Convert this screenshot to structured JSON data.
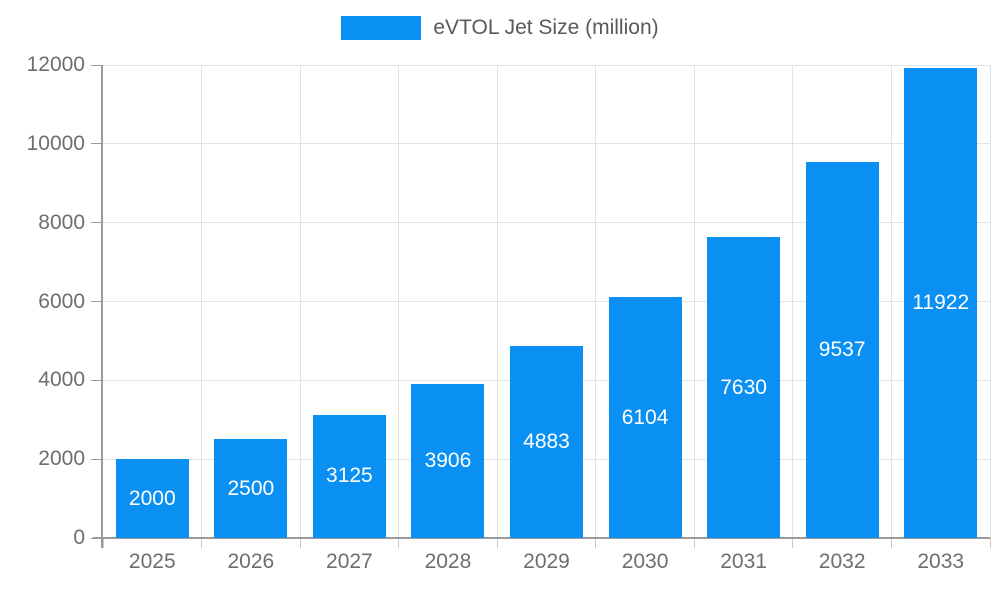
{
  "chart_data": {
    "type": "bar",
    "title": "eVTOL Jet Size (million)",
    "legend": {
      "label": "eVTOL Jet Size (million)",
      "position": "top"
    },
    "categories": [
      "2025",
      "2026",
      "2027",
      "2028",
      "2029",
      "2030",
      "2031",
      "2032",
      "2033"
    ],
    "series": [
      {
        "name": "eVTOL Jet Size (million)",
        "values": [
          2000,
          2500,
          3125,
          3906,
          4883,
          6104,
          7630,
          9537,
          11922
        ]
      }
    ],
    "bar_labels_visible": true,
    "xlabel": "",
    "ylabel": "",
    "ylim": [
      0,
      12000
    ],
    "ytick_step": 2000,
    "yticks": [
      0,
      2000,
      4000,
      6000,
      8000,
      10000,
      12000
    ],
    "grid": true
  },
  "colors": {
    "bar": "#0a8ff2",
    "grid": "#e3e3e3",
    "axis": "#9a9a9a",
    "tick_label": "#6e6e6e",
    "legend_text": "#595959",
    "bar_label": "#ffffff",
    "background": "#ffffff"
  }
}
